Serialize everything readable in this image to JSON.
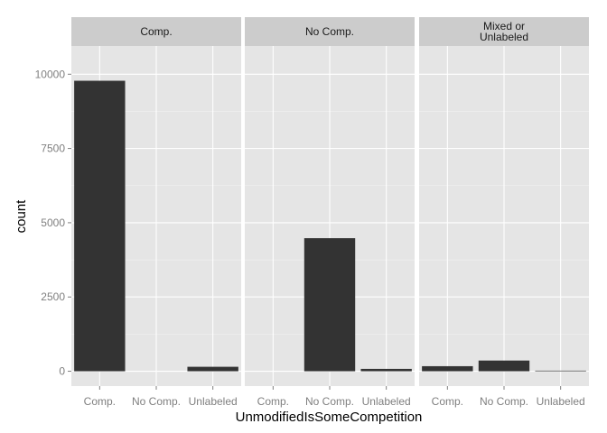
{
  "chart_data": {
    "type": "bar",
    "facets": [
      {
        "label": [
          "Comp."
        ],
        "values": [
          9780,
          0,
          150
        ]
      },
      {
        "label": [
          "No Comp."
        ],
        "values": [
          0,
          4480,
          80
        ]
      },
      {
        "label": [
          "Mixed or",
          "Unlabeled"
        ],
        "values": [
          170,
          360,
          20
        ]
      }
    ],
    "categories": [
      "Comp.",
      "No Comp.",
      "Unlabeled"
    ],
    "xlabel": "UnmodifiedIsSomeCompetition",
    "ylabel": "count",
    "yticks": [
      0,
      2500,
      5000,
      7500,
      10000
    ],
    "ylim": [
      -500,
      10950
    ],
    "grid": true,
    "colors": {
      "panel": "#e5e5e5",
      "strip": "#cccccc",
      "grid_major": "#ffffff",
      "grid_minor": "#f2f2f2",
      "bar": "#333333",
      "tick": "#7f7f7f"
    }
  }
}
